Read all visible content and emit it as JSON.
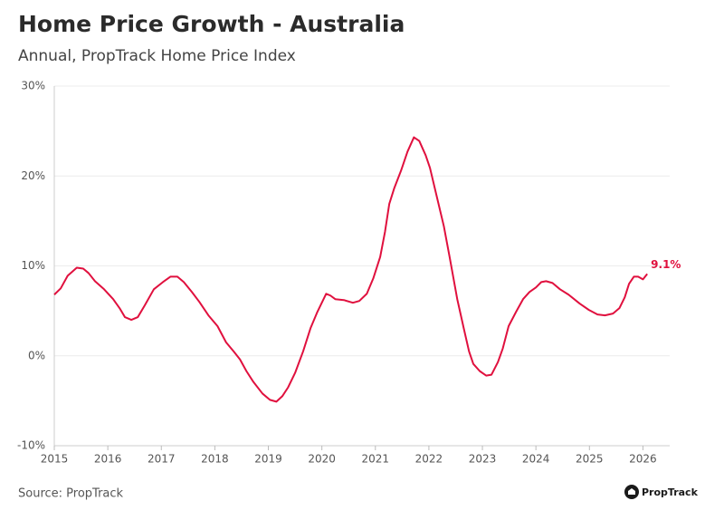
{
  "chart_data": {
    "type": "line",
    "title": "Home Price Growth - Australia",
    "subtitle": "Annual, PropTrack Home Price Index",
    "source": "Source: PropTrack",
    "brand": "PropTrack",
    "xlim": [
      2015,
      2026.5
    ],
    "xticks": [
      2015,
      2016,
      2017,
      2018,
      2019,
      2020,
      2021,
      2022,
      2023,
      2024,
      2025,
      2026
    ],
    "ylim": [
      -10,
      30
    ],
    "yticks": [
      {
        "value": -10,
        "label": "-10%"
      },
      {
        "value": 0,
        "label": "0%"
      },
      {
        "value": 10,
        "label": "10%"
      },
      {
        "value": 20,
        "label": "20%"
      },
      {
        "value": 30,
        "label": "30%"
      }
    ],
    "grid": true,
    "series": [
      {
        "color": "#e0103e",
        "x": [
          2015.0,
          2015.12,
          2015.25,
          2015.42,
          2015.54,
          2015.64,
          2015.76,
          2015.93,
          2016.1,
          2016.22,
          2016.32,
          2016.44,
          2016.56,
          2016.69,
          2016.86,
          2017.03,
          2017.17,
          2017.3,
          2017.42,
          2017.57,
          2017.71,
          2017.88,
          2018.05,
          2018.21,
          2018.35,
          2018.47,
          2018.59,
          2018.72,
          2018.89,
          2019.03,
          2019.15,
          2019.26,
          2019.37,
          2019.5,
          2019.65,
          2019.79,
          2019.91,
          2020.08,
          2020.16,
          2020.25,
          2020.41,
          2020.58,
          2020.7,
          2020.84,
          2020.96,
          2021.09,
          2021.18,
          2021.26,
          2021.35,
          2021.48,
          2021.6,
          2021.72,
          2021.82,
          2021.94,
          2022.02,
          2022.14,
          2022.28,
          2022.39,
          2022.53,
          2022.65,
          2022.75,
          2022.83,
          2022.95,
          2023.07,
          2023.17,
          2023.29,
          2023.38,
          2023.49,
          2023.63,
          2023.76,
          2023.88,
          2024.0,
          2024.1,
          2024.19,
          2024.31,
          2024.45,
          2024.61,
          2024.82,
          2024.99,
          2025.15,
          2025.29,
          2025.44,
          2025.56,
          2025.66,
          2025.74,
          2025.83,
          2025.91,
          2026.0,
          2026.08
        ],
        "values": [
          6.8,
          7.5,
          8.9,
          9.8,
          9.7,
          9.2,
          8.3,
          7.4,
          6.3,
          5.3,
          4.3,
          4.0,
          4.3,
          5.6,
          7.4,
          8.2,
          8.8,
          8.8,
          8.2,
          7.1,
          6.0,
          4.5,
          3.3,
          1.5,
          0.5,
          -0.4,
          -1.7,
          -2.9,
          -4.2,
          -4.9,
          -5.1,
          -4.5,
          -3.5,
          -1.9,
          0.5,
          3.1,
          4.8,
          6.9,
          6.7,
          6.3,
          6.2,
          5.9,
          6.1,
          6.9,
          8.6,
          11.0,
          13.8,
          16.9,
          18.6,
          20.6,
          22.7,
          24.3,
          23.9,
          22.3,
          20.9,
          17.9,
          14.4,
          10.9,
          6.3,
          3.1,
          0.5,
          -0.9,
          -1.7,
          -2.2,
          -2.1,
          -0.7,
          0.8,
          3.3,
          4.9,
          6.3,
          7.1,
          7.6,
          8.2,
          8.3,
          8.1,
          7.4,
          6.8,
          5.8,
          5.1,
          4.6,
          4.5,
          4.7,
          5.3,
          6.5,
          8.0,
          8.8,
          8.8,
          8.5,
          9.1
        ],
        "value_labels": [
          null,
          null,
          null,
          null,
          null,
          null,
          null,
          null,
          null,
          null,
          null,
          null,
          null,
          null,
          null,
          null,
          null,
          null,
          null,
          null,
          null,
          null,
          null,
          null,
          null,
          null,
          null,
          null,
          null,
          null,
          null,
          null,
          null,
          null,
          null,
          null,
          null,
          null,
          null,
          null,
          null,
          null,
          null,
          null,
          null,
          null,
          null,
          null,
          null,
          null,
          null,
          null,
          null,
          null,
          null,
          null,
          null,
          null,
          null,
          null,
          null,
          null,
          null,
          null,
          null,
          null,
          null,
          null,
          null,
          null,
          null,
          null,
          null,
          null,
          null,
          null,
          null,
          null,
          null,
          null,
          null,
          null,
          null,
          null,
          null,
          null,
          null,
          null,
          "9.1%"
        ]
      }
    ]
  }
}
